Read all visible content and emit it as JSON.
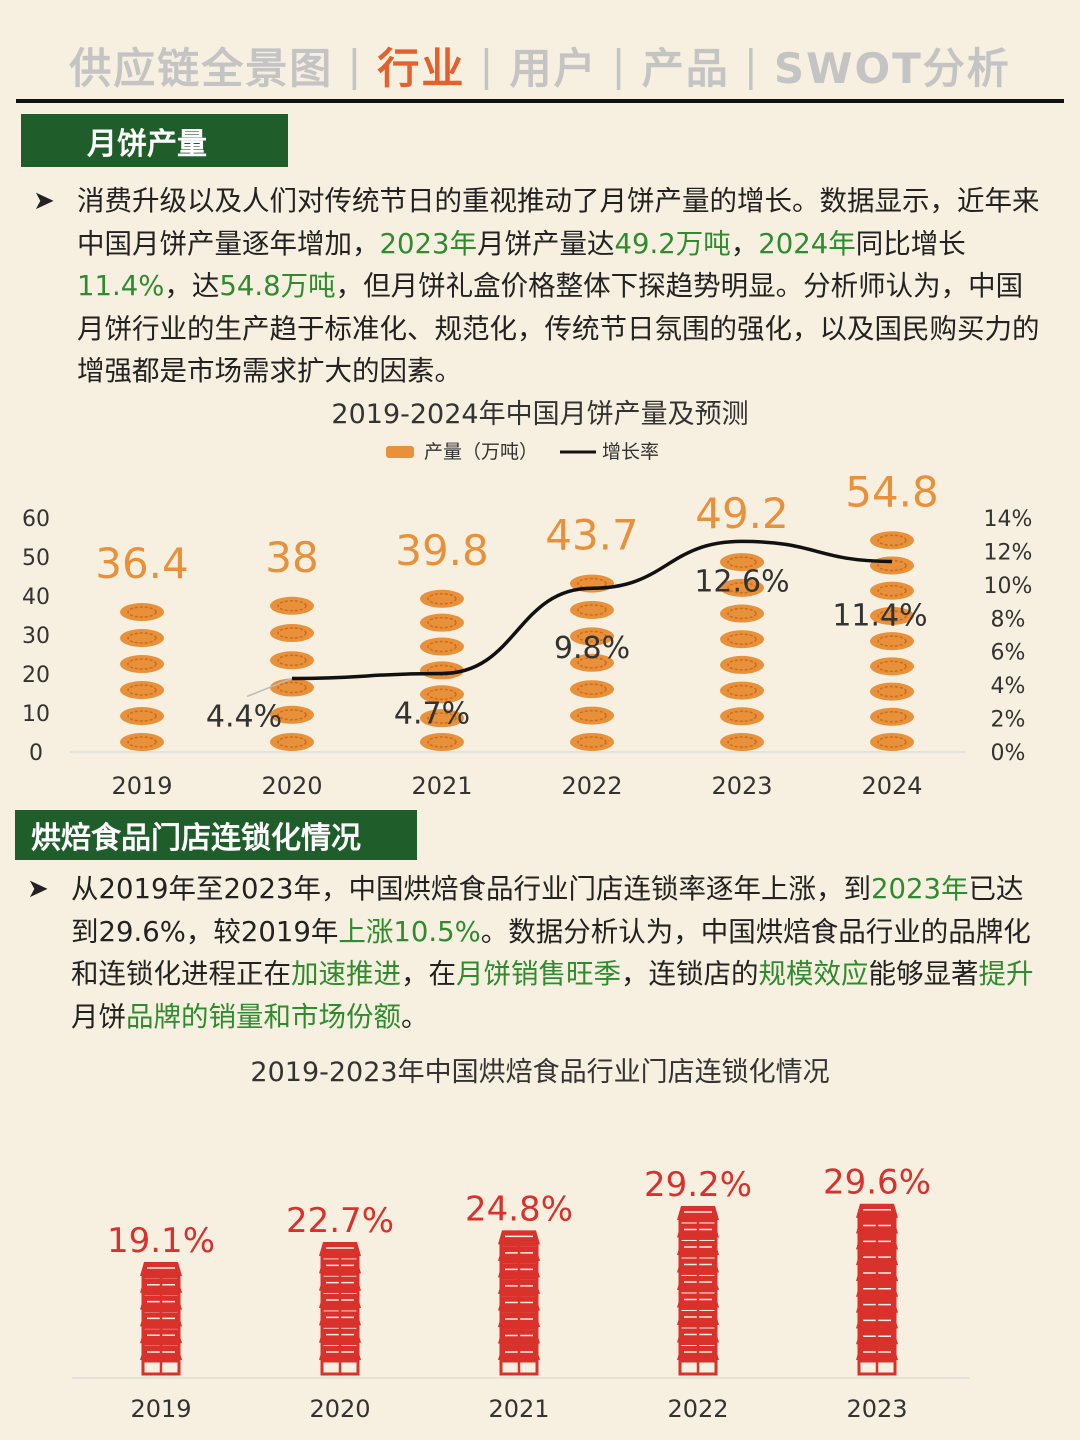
{
  "nav": {
    "items": [
      "供应链全景图",
      "行业",
      "用户",
      "产品",
      "SWOT分析"
    ],
    "active_index": 1,
    "separator": "|"
  },
  "section1": {
    "tag": "月饼产量",
    "paragraph": [
      {
        "t": "消费升级以及人们对传统节日的重视推动了月饼产量的增长。数据显示，近年来中国月饼产量逐年增加，"
      },
      {
        "t": "2023年",
        "hl": true
      },
      {
        "t": "月饼产量达"
      },
      {
        "t": "49.2万吨",
        "hl": true
      },
      {
        "t": "，"
      },
      {
        "t": "2024年",
        "hl": true
      },
      {
        "t": "同比增长"
      },
      {
        "t": "11.4%",
        "hl": true
      },
      {
        "t": "，达"
      },
      {
        "t": "54.8万吨",
        "hl": true
      },
      {
        "t": "，但月饼礼盒价格整体下探趋势明显。分析师认为，中国月饼行业的生产趋于标准化、规范化，传统节日氛围的强化，以及国民购买力的增强都是市场需求扩大的因素。"
      }
    ]
  },
  "section2": {
    "tag": "烘焙食品门店连锁化情况",
    "paragraph": [
      {
        "t": "从2019年至2023年，中国烘焙食品行业门店连锁率逐年上涨，到"
      },
      {
        "t": "2023年",
        "hl": true
      },
      {
        "t": "已达到29.6%，较2019年"
      },
      {
        "t": "上涨10.5%",
        "hl": true
      },
      {
        "t": "。数据分析认为，中国烘焙食品行业的品牌化和连锁化进程正在"
      },
      {
        "t": "加速推进",
        "hl": true
      },
      {
        "t": "，在"
      },
      {
        "t": "月饼销售旺季",
        "hl": true
      },
      {
        "t": "，连锁店的"
      },
      {
        "t": "规模效应",
        "hl": true
      },
      {
        "t": "能够显著"
      },
      {
        "t": "提升",
        "hl": true
      },
      {
        "t": "月饼"
      },
      {
        "t": "品牌的销量和市场份额",
        "hl": true
      },
      {
        "t": "。"
      }
    ]
  },
  "bullet_glyph": "➤",
  "colors": {
    "accent_green": "#1f5e2a",
    "highlight_green": "#2e8b2e",
    "nav_active": "#e4612e",
    "mooncake_orange": "#e8913a",
    "store_red": "#d9312b",
    "background": "#f7f0e0"
  },
  "chart_data": [
    {
      "type": "bar",
      "title": "2019-2024年中国月饼产量及预测",
      "categories": [
        "2019",
        "2020",
        "2021",
        "2022",
        "2023",
        "2024"
      ],
      "series": [
        {
          "name": "产量（万吨）",
          "axis": "left",
          "values": [
            36.4,
            38,
            39.8,
            43.7,
            49.2,
            54.8
          ],
          "labels": [
            "36.4",
            "38",
            "39.8",
            "43.7",
            "49.2",
            "54.8"
          ],
          "style": "mooncake-icon-stack"
        },
        {
          "name": "增长率",
          "type": "line",
          "axis": "right",
          "values": [
            null,
            4.4,
            4.7,
            9.8,
            12.6,
            11.4
          ],
          "labels": [
            "",
            "4.4%",
            "4.7%",
            "9.8%",
            "12.6%",
            "11.4%"
          ]
        }
      ],
      "ylim": [
        0,
        60
      ],
      "yticks": [
        "0",
        "10",
        "20",
        "30",
        "40",
        "50",
        "60"
      ],
      "y2lim": [
        0,
        14
      ],
      "y2ticks": [
        "0%",
        "2%",
        "4%",
        "6%",
        "8%",
        "10%",
        "12%",
        "14%"
      ],
      "legend_position": "top-center",
      "grid": false
    },
    {
      "type": "bar",
      "title": "2019-2023年中国烘焙食品行业门店连锁化情况",
      "categories": [
        "2019",
        "2020",
        "2021",
        "2022",
        "2023"
      ],
      "values": [
        19.1,
        22.7,
        24.8,
        29.2,
        29.6
      ],
      "labels": [
        "19.1%",
        "22.7%",
        "24.8%",
        "29.2%",
        "29.6%"
      ],
      "style": "store-icon-stack",
      "grid": false
    }
  ]
}
